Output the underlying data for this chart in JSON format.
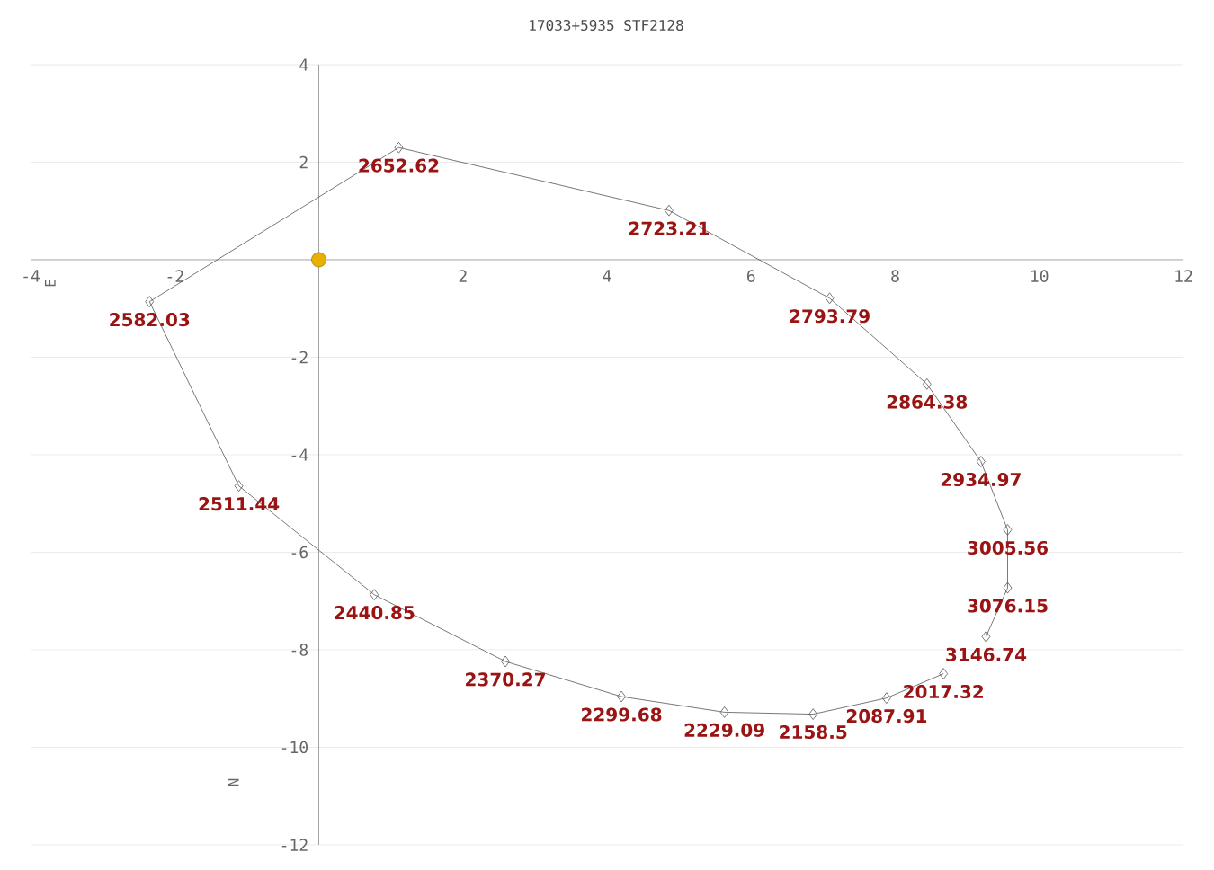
{
  "chart_data": {
    "type": "line",
    "title": "17033+5935 STF2128",
    "xlim": [
      -4,
      12
    ],
    "ylim": [
      -12,
      4
    ],
    "xticks": [
      -4,
      -2,
      2,
      4,
      6,
      8,
      10,
      12
    ],
    "yticks": [
      -12,
      -10,
      -8,
      -6,
      -4,
      -2,
      2,
      4
    ],
    "grid": "y",
    "series": [
      {
        "color": "#555555",
        "marker": "diamond",
        "x": [
          8.67,
          7.88,
          6.86,
          5.63,
          4.2,
          2.59,
          0.77,
          -1.11,
          -2.35,
          1.11,
          4.86,
          7.09,
          8.44,
          9.19,
          9.56,
          9.56,
          9.26
        ],
        "values": [
          -8.49,
          -8.99,
          -9.32,
          -9.28,
          -8.96,
          -8.24,
          -6.87,
          -4.64,
          -0.86,
          2.3,
          1.01,
          -0.79,
          -2.55,
          -4.14,
          -5.54,
          -6.73,
          -7.73
        ]
      },
      {
        "type": "scatter",
        "color": "#e8b000",
        "marker": "circle",
        "x": [
          0
        ],
        "values": [
          0
        ]
      }
    ],
    "annotations": [
      "E",
      "N",
      {
        "text": "2017.32",
        "x": 8.67,
        "y": -8.49
      },
      {
        "text": "2087.91",
        "x": 7.88,
        "y": -8.99
      },
      {
        "text": "2158.5",
        "x": 6.86,
        "y": -9.32
      },
      {
        "text": "2229.09",
        "x": 5.63,
        "y": -9.28
      },
      {
        "text": "2299.68",
        "x": 4.2,
        "y": -8.96
      },
      {
        "text": "2370.27",
        "x": 2.59,
        "y": -8.24
      },
      {
        "text": "2440.85",
        "x": 0.77,
        "y": -6.87
      },
      {
        "text": "2511.44",
        "x": -1.11,
        "y": -4.64
      },
      {
        "text": "2582.03",
        "x": -2.35,
        "y": -0.86
      },
      {
        "text": "2652.62",
        "x": 1.11,
        "y": 2.3
      },
      {
        "text": "2723.21",
        "x": 4.86,
        "y": 1.01
      },
      {
        "text": "2793.79",
        "x": 7.09,
        "y": -0.79
      },
      {
        "text": "2864.38",
        "x": 8.44,
        "y": -2.55
      },
      {
        "text": "2934.97",
        "x": 9.19,
        "y": -4.14
      },
      {
        "text": "3005.56",
        "x": 9.56,
        "y": -5.54
      },
      {
        "text": "3076.15",
        "x": 9.56,
        "y": -6.73
      },
      {
        "text": "3146.74",
        "x": 9.26,
        "y": -7.73
      }
    ]
  }
}
